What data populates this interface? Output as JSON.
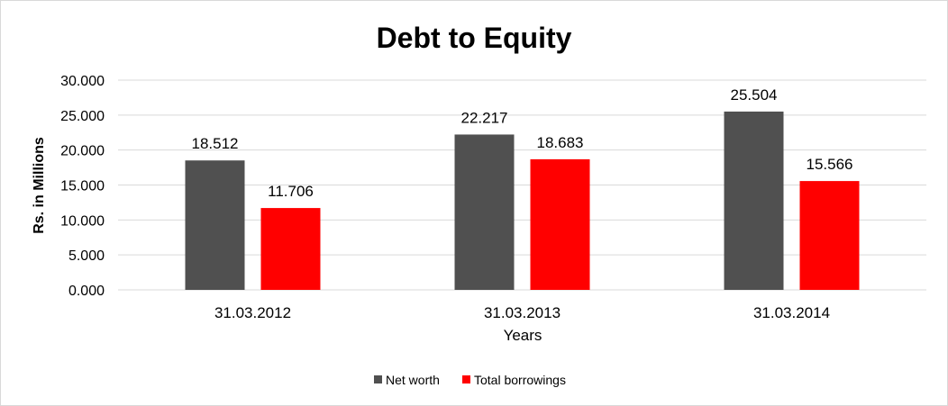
{
  "chart_data": {
    "type": "bar",
    "title": "Debt to Equity",
    "xlabel": "Years",
    "ylabel": "Rs. in Millions",
    "categories": [
      "31.03.2012",
      "31.03.2013",
      "31.03.2014"
    ],
    "series": [
      {
        "name": "Net worth",
        "color": "#505050",
        "values": [
          18.512,
          22.217,
          25.504
        ],
        "labels": [
          "18.512",
          "22.217",
          "25.504"
        ]
      },
      {
        "name": "Total borrowings",
        "color": "#ff0000",
        "values": [
          11.706,
          18.683,
          15.566
        ],
        "labels": [
          "11.706",
          "18.683",
          "15.566"
        ]
      }
    ],
    "ylim": [
      0,
      30
    ],
    "yticks": [
      "0.000",
      "5.000",
      "10.000",
      "15.000",
      "20.000",
      "25.000",
      "30.000"
    ],
    "grid": true,
    "legend_position": "bottom"
  }
}
